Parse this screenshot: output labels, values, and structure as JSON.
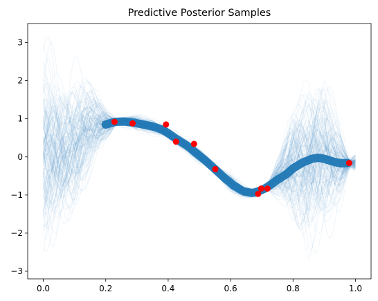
{
  "chart_data": {
    "type": "line",
    "title": "Predictive Posterior Samples",
    "xlabel": "",
    "ylabel": "",
    "xlim": [
      -0.05,
      1.05
    ],
    "ylim": [
      -3.2,
      3.5
    ],
    "xticks": [
      0.0,
      0.2,
      0.4,
      0.6,
      0.8,
      1.0
    ],
    "xtick_labels": [
      "0.0",
      "0.2",
      "0.4",
      "0.6",
      "0.8",
      "1.0"
    ],
    "yticks": [
      -3,
      -2,
      -1,
      0,
      1,
      2,
      3
    ],
    "ytick_labels": [
      "−3",
      "−2",
      "−1",
      "0",
      "1",
      "2",
      "3"
    ],
    "grid": false,
    "sample_color": "#1f77b4",
    "mean_curve": {
      "x": [
        0.0,
        0.05,
        0.1,
        0.15,
        0.2,
        0.23,
        0.26,
        0.29,
        0.32,
        0.35,
        0.38,
        0.4,
        0.43,
        0.46,
        0.49,
        0.52,
        0.55,
        0.58,
        0.61,
        0.64,
        0.67,
        0.69,
        0.71,
        0.73,
        0.75,
        0.78,
        0.8,
        0.83,
        0.86,
        0.88,
        0.9,
        0.92,
        0.94,
        0.96,
        0.98,
        1.0
      ],
      "y": [
        0.1,
        0.3,
        0.45,
        0.7,
        0.85,
        0.92,
        0.93,
        0.9,
        0.85,
        0.8,
        0.72,
        0.62,
        0.45,
        0.3,
        0.1,
        -0.1,
        -0.32,
        -0.55,
        -0.75,
        -0.9,
        -0.95,
        -0.9,
        -0.83,
        -0.72,
        -0.6,
        -0.45,
        -0.3,
        -0.15,
        -0.05,
        -0.02,
        -0.05,
        -0.1,
        -0.15,
        -0.17,
        -0.16,
        -0.15
      ]
    },
    "spread_curve": {
      "x": [
        0.0,
        0.05,
        0.1,
        0.15,
        0.2,
        0.23,
        0.3,
        0.4,
        0.5,
        0.55,
        0.6,
        0.69,
        0.72,
        0.76,
        0.8,
        0.85,
        0.9,
        0.95,
        0.98,
        1.0
      ],
      "s": [
        1.35,
        1.15,
        0.9,
        0.55,
        0.22,
        0.05,
        0.1,
        0.07,
        0.1,
        0.05,
        0.12,
        0.06,
        0.05,
        0.3,
        0.75,
        1.05,
        0.95,
        0.45,
        0.05,
        0.12
      ]
    },
    "observations": {
      "x": [
        0.228,
        0.286,
        0.393,
        0.425,
        0.483,
        0.551,
        0.688,
        0.698,
        0.718,
        0.98
      ],
      "y": [
        0.92,
        0.88,
        0.85,
        0.4,
        0.34,
        -0.32,
        -0.97,
        -0.83,
        -0.83,
        -0.16
      ],
      "color": "#ff0000"
    }
  }
}
